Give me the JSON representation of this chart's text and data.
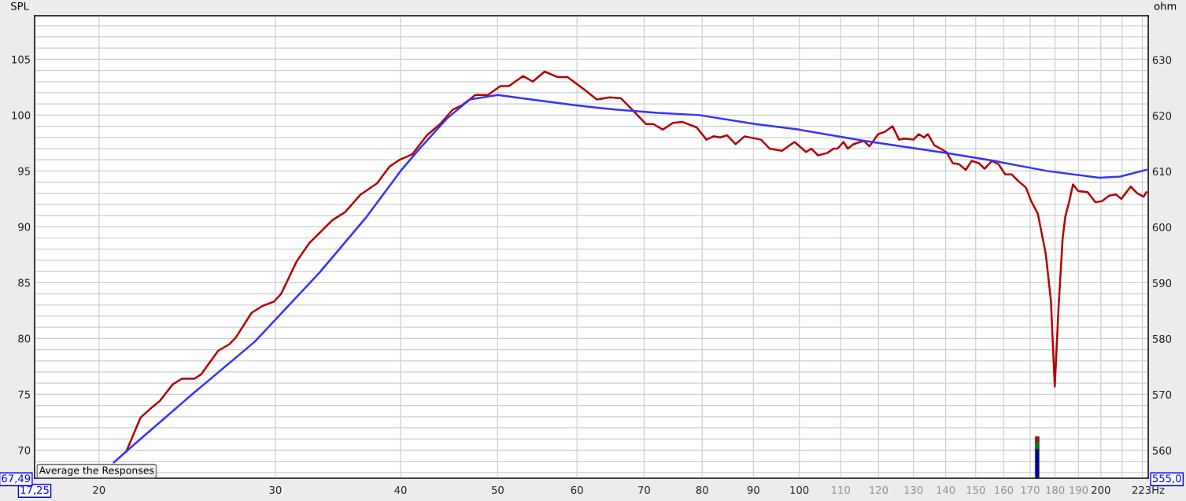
{
  "chart_data": {
    "type": "line",
    "ylabel": "SPL",
    "y2label": "ohm",
    "log": "x",
    "grid": true,
    "line_style": "solid",
    "xlim": [
      17.25,
      223
    ],
    "ylim": [
      67.49,
      108.9
    ],
    "y2lim": [
      555.0,
      637.9
    ],
    "xticks": [
      {
        "value": 17.25,
        "label": "17,25"
      },
      20,
      30,
      40,
      50,
      60,
      70,
      80,
      90,
      100,
      110,
      120,
      130,
      140,
      150,
      160,
      170,
      180,
      190,
      200,
      {
        "value": 210,
        "label": null
      },
      {
        "value": 220,
        "label": null
      },
      {
        "value": 223,
        "label": "223Hz"
      }
    ],
    "yticks": [
      {
        "value": 67.49,
        "label": "67,49"
      },
      {
        "value": 68,
        "label": null
      },
      {
        "value": 69,
        "label": null
      },
      70,
      {
        "value": 71,
        "label": null
      },
      {
        "value": 72,
        "label": null
      },
      {
        "value": 73,
        "label": null
      },
      {
        "value": 74,
        "label": null
      },
      75,
      {
        "value": 76,
        "label": null
      },
      {
        "value": 77,
        "label": null
      },
      {
        "value": 78,
        "label": null
      },
      {
        "value": 79,
        "label": null
      },
      80,
      {
        "value": 81,
        "label": null
      },
      {
        "value": 82,
        "label": null
      },
      {
        "value": 83,
        "label": null
      },
      {
        "value": 84,
        "label": null
      },
      85,
      {
        "value": 86,
        "label": null
      },
      {
        "value": 87,
        "label": null
      },
      {
        "value": 88,
        "label": null
      },
      {
        "value": 89,
        "label": null
      },
      90,
      {
        "value": 91,
        "label": null
      },
      {
        "value": 92,
        "label": null
      },
      {
        "value": 93,
        "label": null
      },
      {
        "value": 94,
        "label": null
      },
      95,
      {
        "value": 96,
        "label": null
      },
      {
        "value": 97,
        "label": null
      },
      {
        "value": 98,
        "label": null
      },
      {
        "value": 99,
        "label": null
      },
      100,
      {
        "value": 101,
        "label": null
      },
      {
        "value": 102,
        "label": null
      },
      {
        "value": 103,
        "label": null
      },
      {
        "value": 104,
        "label": null
      },
      105,
      {
        "value": 106,
        "label": null
      },
      {
        "value": 107,
        "label": null
      },
      {
        "value": 108,
        "label": null
      }
    ],
    "y2ticks": [
      {
        "value": 555.0,
        "label": "555,0"
      },
      560,
      570,
      580,
      590,
      600,
      610,
      620,
      630
    ],
    "annotations": [
      "Average the Responses"
    ],
    "series": [
      {
        "color": "#b30000",
        "x": [
          21.3,
          22.0,
          22.5,
          23.0,
          23.7,
          24.2,
          24.9,
          25.3,
          26.3,
          27.0,
          27.4,
          28.4,
          29.1,
          29.9,
          30.4,
          31.5,
          32.4,
          34.2,
          35.2,
          36.5,
          37.9,
          39.0,
          39.9,
          41.1,
          42.5,
          43.8,
          45.1,
          46.1,
          47.5,
          48.9,
          50.3,
          51.3,
          53.0,
          54.2,
          55.7,
          57.4,
          58.7,
          61.0,
          62.8,
          64.7,
          66.4,
          68.1,
          70.3,
          71.5,
          73.1,
          74.8,
          76.4,
          79.0,
          80.8,
          82.1,
          83.4,
          84.7,
          86.4,
          88.2,
          91.6,
          93.4,
          96.1,
          98.9,
          101.6,
          102.8,
          104.4,
          106.6,
          108.2,
          109.2,
          110.7,
          111.8,
          113.3,
          116.0,
          117.5,
          119.9,
          121.7,
          123.9,
          125.8,
          127.3,
          130.0,
          131.6,
          133.2,
          134.4,
          136.4,
          140.2,
          142.3,
          144.4,
          146.6,
          148.6,
          151.1,
          153.1,
          155.7,
          158.1,
          160.5,
          162.9,
          165.4,
          168.4,
          170.4,
          173.0,
          176.2,
          178.3,
          179.9,
          181.5,
          183.2,
          184.3,
          186.0,
          187.6,
          189.9,
          194.0,
          197.5,
          200.5,
          204.0,
          207.1,
          209.6,
          214.2,
          217.5,
          220.7,
          222.0
        ],
        "values": [
          69.9,
          72.9,
          73.7,
          74.4,
          75.9,
          76.4,
          76.4,
          76.8,
          78.9,
          79.5,
          80.1,
          82.3,
          82.9,
          83.3,
          84.0,
          86.9,
          88.5,
          90.6,
          91.3,
          92.9,
          93.9,
          95.4,
          96.0,
          96.5,
          98.2,
          99.2,
          100.5,
          100.9,
          101.8,
          101.8,
          102.6,
          102.6,
          103.5,
          103.0,
          103.9,
          103.4,
          103.4,
          102.3,
          101.4,
          101.6,
          101.5,
          100.5,
          99.2,
          99.2,
          98.7,
          99.3,
          99.4,
          98.9,
          97.8,
          98.1,
          98.0,
          98.2,
          97.4,
          98.1,
          97.8,
          97.0,
          96.8,
          97.6,
          96.7,
          97.0,
          96.4,
          96.6,
          97.0,
          97.0,
          97.6,
          97.0,
          97.4,
          97.7,
          97.2,
          98.3,
          98.5,
          99.0,
          97.8,
          97.9,
          97.8,
          98.3,
          98.0,
          98.3,
          97.3,
          96.7,
          95.7,
          95.6,
          95.1,
          95.9,
          95.7,
          95.2,
          95.9,
          95.6,
          94.7,
          94.7,
          94.1,
          93.5,
          92.3,
          91.2,
          87.6,
          83.4,
          75.7,
          82.9,
          89.0,
          90.9,
          92.3,
          93.8,
          93.2,
          93.1,
          92.2,
          92.3,
          92.8,
          92.9,
          92.5,
          93.6,
          93.0,
          92.7,
          93.1
        ]
      },
      {
        "color": "#3333ff",
        "x": [
          20.7,
          21.3,
          24.7,
          28.6,
          33.2,
          37.0,
          40.0,
          41.7,
          44.5,
          46.9,
          50.0,
          54.0,
          59.5,
          65.5,
          72.2,
          79.5,
          90.4,
          100.0,
          116.0,
          140.6,
          156.4,
          176.7,
          199.3,
          209.1,
          222.0
        ],
        "values": [
          68.9,
          69.9,
          74.9,
          79.7,
          85.9,
          90.9,
          95.0,
          96.9,
          99.7,
          101.4,
          101.8,
          101.4,
          100.9,
          100.5,
          100.2,
          100.0,
          99.2,
          98.7,
          97.7,
          96.6,
          95.9,
          95.0,
          94.4,
          94.5,
          95.1
        ]
      }
    ]
  }
}
